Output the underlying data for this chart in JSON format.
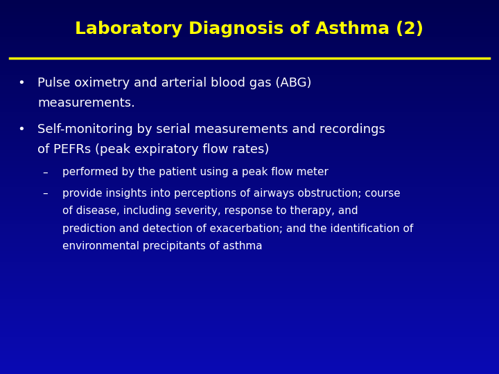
{
  "title": "Laboratory Diagnosis of Asthma (2)",
  "title_color": "#FFFF00",
  "title_fontsize": 18,
  "bg_top_color": "#000060",
  "bg_bottom_color": "#0000cc",
  "line_color": "#FFFF00",
  "body_text_color": "#FFFFFF",
  "bullet_color": "#FFFFFF",
  "bullet1_line1": "Pulse oximetry and arterial blood gas (ABG)",
  "bullet1_line2": "measurements.",
  "bullet2_line1": "Self-monitoring by serial measurements and recordings",
  "bullet2_line2": "of PEFRs (peak expiratory flow rates)",
  "sub1": "performed by the patient using a peak flow meter",
  "sub2_line1": "provide insights into perceptions of airways obstruction; course",
  "sub2_line2": "of disease, including severity, response to therapy, and",
  "sub2_line3": "prediction and detection of exacerbation; and the identification of",
  "sub2_line4": "environmental precipitants of asthma",
  "body_fontsize": 13,
  "sub_fontsize": 11
}
